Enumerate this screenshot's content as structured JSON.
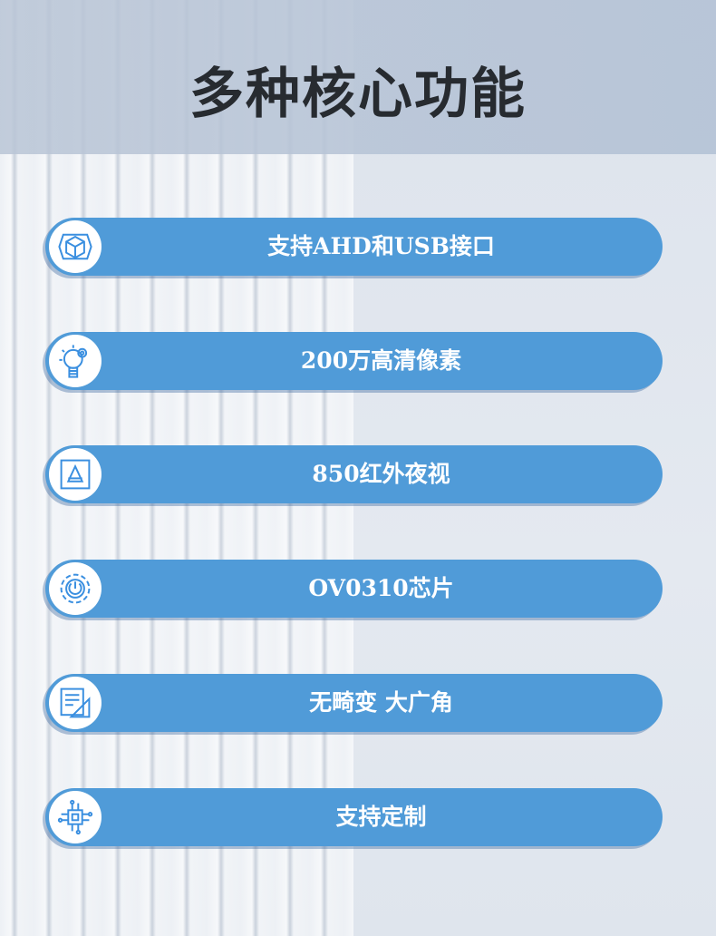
{
  "title": "多种核心功能",
  "colors": {
    "pill": "#509bd8",
    "icon": "#3a8fe0",
    "title": "#272b30"
  },
  "features": [
    {
      "label": "支持AHD和USB接口",
      "icon": "cube-icon"
    },
    {
      "label": "200万高清像素",
      "icon": "lightbulb-gear-icon"
    },
    {
      "label": "850红外夜视",
      "icon": "prism-frame-icon"
    },
    {
      "label": "OV0310芯片",
      "icon": "gear-power-icon"
    },
    {
      "label": "无畸变 大广角",
      "icon": "ruler-grid-icon"
    },
    {
      "label": "支持定制",
      "icon": "chip-circuit-icon"
    }
  ]
}
